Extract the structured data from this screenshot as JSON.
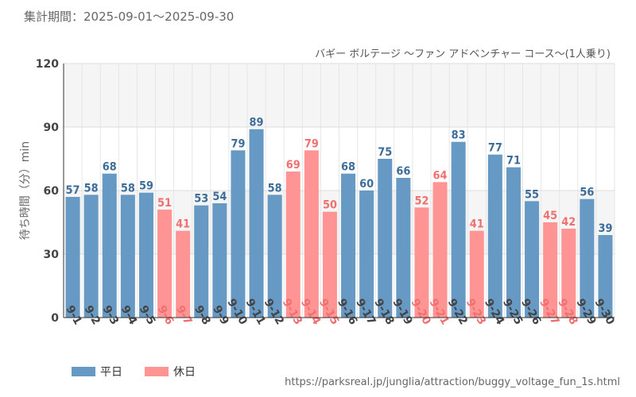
{
  "header": {
    "period_label": "集計期間：2025-09-01〜2025-09-30"
  },
  "chart_data": {
    "type": "bar",
    "title": "バギー ボルテージ 〜ファン アドベンチャー コース〜(1人乗り)",
    "ylabel": "待ち時間（分）min",
    "xlabel": "",
    "ylim": [
      0,
      120
    ],
    "yticks": [
      0,
      30,
      60,
      90,
      120
    ],
    "categories": [
      "9-1",
      "9-2",
      "9-3",
      "9-4",
      "9-5",
      "9-6",
      "9-7",
      "9-8",
      "9-9",
      "9-10",
      "9-11",
      "9-12",
      "9-13",
      "9-14",
      "9-15",
      "9-16",
      "9-17",
      "9-18",
      "9-19",
      "9-20",
      "9-21",
      "9-22",
      "9-23",
      "9-24",
      "9-25",
      "9-26",
      "9-27",
      "9-28",
      "9-29",
      "9-30"
    ],
    "values": [
      57,
      58,
      68,
      58,
      59,
      51,
      41,
      53,
      54,
      79,
      89,
      58,
      69,
      79,
      50,
      68,
      60,
      75,
      66,
      52,
      64,
      83,
      41,
      77,
      71,
      55,
      45,
      42,
      56,
      39
    ],
    "day_type": [
      "weekday",
      "weekday",
      "weekday",
      "weekday",
      "weekday",
      "holiday",
      "holiday",
      "weekday",
      "weekday",
      "weekday",
      "weekday",
      "weekday",
      "holiday",
      "holiday",
      "holiday",
      "weekday",
      "weekday",
      "weekday",
      "weekday",
      "holiday",
      "holiday",
      "weekday",
      "holiday",
      "weekday",
      "weekday",
      "weekday",
      "holiday",
      "holiday",
      "weekday",
      "weekday"
    ],
    "legend": {
      "position": "bottom-left",
      "entries": [
        {
          "key": "weekday",
          "label": "平日",
          "color": "#6699c4"
        },
        {
          "key": "holiday",
          "label": "休日",
          "color": "#ff9494"
        }
      ]
    },
    "label_colors": {
      "weekday": "#3d6d99",
      "holiday": "#f07070"
    },
    "grid": true
  },
  "footer": {
    "source_url": "https://parksreal.jp/junglia/attraction/buggy_voltage_fun_1s.html"
  }
}
